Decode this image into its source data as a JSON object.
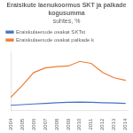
{
  "chart_data": {
    "type": "line",
    "title": "Eraisikute laenukoormus SKT ja palkade kogusumma",
    "subtitle": "suhtes, %",
    "x": [
      2004,
      2005,
      2006,
      2007,
      2008,
      2009,
      2010,
      2011,
      2012,
      2013,
      2014
    ],
    "series": [
      {
        "name": "Eraiskulaenude osakat SKTst",
        "color": "#4472c4",
        "values": [
          8,
          9,
          10,
          11,
          12,
          12.5,
          13,
          12.5,
          12,
          11.5,
          11
        ]
      },
      {
        "name": "Eraiskulaenude osakat palkade k",
        "color": "#ed7d31",
        "values": [
          20,
          38,
          58,
          65,
          67,
          68,
          75,
          72,
          58,
          50,
          46
        ]
      }
    ],
    "xlim": [
      2004,
      2014.2
    ],
    "xticks": [
      2004,
      2005,
      2006,
      2007,
      2008,
      2009,
      2010,
      2011,
      2012,
      2013,
      2014
    ],
    "ylim": [
      0,
      90
    ],
    "grid": false,
    "legend": "upper left",
    "tick_labels": "x"
  }
}
